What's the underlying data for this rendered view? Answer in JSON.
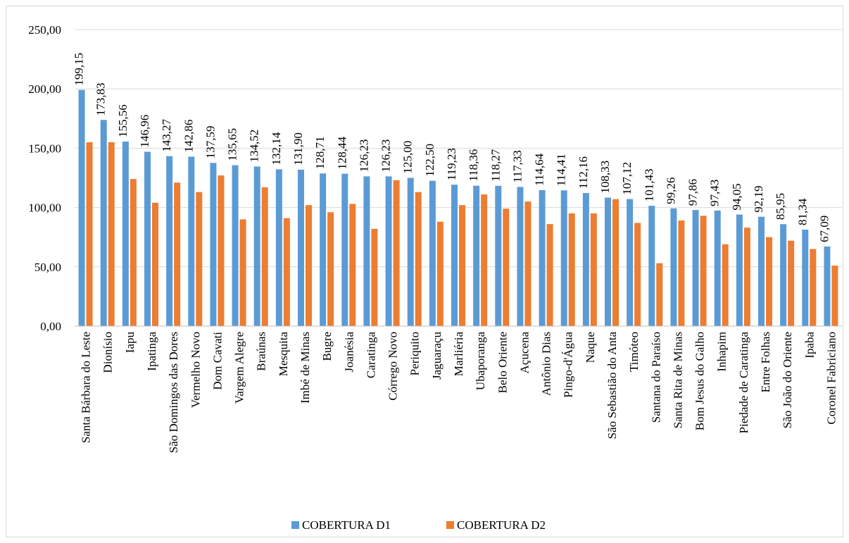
{
  "chart_data": {
    "type": "bar",
    "title": "",
    "xlabel": "",
    "ylabel": "",
    "ylim": [
      0,
      250
    ],
    "yticks": [
      "0,00",
      "50,00",
      "100,00",
      "150,00",
      "200,00",
      "250,00"
    ],
    "ytick_values": [
      0,
      50,
      100,
      150,
      200,
      250
    ],
    "grid": true,
    "legend_position": "bottom",
    "categories": [
      "Santa Bárbara do Leste",
      "Dionísio",
      "Iapu",
      "Ipatinga",
      "São Domingos das Dores",
      "Vermelho Novo",
      "Dom Cavati",
      "Vargem Alegre",
      "Braúnas",
      "Mesquita",
      "Imbé de Minas",
      "Bugre",
      "Joanésia",
      "Caratinga",
      "Córrego Novo",
      "Periquito",
      "Jaguaraçu",
      "Marliéria",
      "Ubaporanga",
      "Belo Oriente",
      "Açucena",
      "Antônio Dias",
      "Pingo-d'Água",
      "Naque",
      "São Sebastião do Anta",
      "Timóteo",
      "Santana do Paraíso",
      "Santa Rita de Minas",
      "Bom Jesus do Galho",
      "Inhapim",
      "Piedade de Caratinga",
      "Entre Folhas",
      "São João do Oriente",
      "Ipaba",
      "Coronel Fabriciano"
    ],
    "series": [
      {
        "name": "COBERTURA D1",
        "color": "#5B9BD5",
        "values": [
          199.15,
          173.83,
          155.56,
          146.96,
          143.27,
          142.86,
          137.59,
          135.65,
          134.52,
          132.14,
          131.9,
          128.71,
          128.44,
          126.23,
          126.23,
          125.0,
          122.5,
          119.23,
          118.36,
          118.27,
          117.33,
          114.64,
          114.41,
          112.16,
          108.33,
          107.12,
          101.43,
          99.26,
          97.86,
          97.43,
          94.05,
          92.19,
          85.95,
          81.34,
          67.09
        ],
        "data_labels": [
          "199,15",
          "173,83",
          "155,56",
          "146,96",
          "143,27",
          "142,86",
          "137,59",
          "135,65",
          "134,52",
          "132,14",
          "131,90",
          "128,71",
          "128,44",
          "126,23",
          "126,23",
          "125,00",
          "122,50",
          "119,23",
          "118,36",
          "118,27",
          "117,33",
          "114,64",
          "114,41",
          "112,16",
          "108,33",
          "107,12",
          "101,43",
          "99,26",
          "97,86",
          "97,43",
          "94,05",
          "92,19",
          "85,95",
          "81,34",
          "67,09"
        ]
      },
      {
        "name": "COBERTURA D2",
        "color": "#ED7D31",
        "values": [
          155,
          155,
          124,
          104,
          121,
          113,
          127,
          90,
          117,
          91,
          102,
          96,
          103,
          82,
          123,
          113,
          88,
          102,
          111,
          99,
          105,
          86,
          95,
          95,
          107,
          87,
          53,
          89,
          93,
          69,
          83,
          75,
          72,
          65,
          51
        ]
      }
    ]
  }
}
